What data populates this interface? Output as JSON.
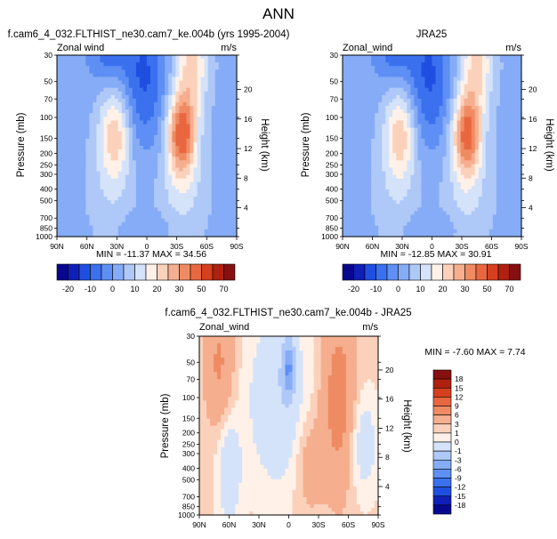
{
  "page": {
    "title": "ANN"
  },
  "chart_data": [
    {
      "id": "p1",
      "type": "heatmap",
      "title": "f.cam6_4_032.FLTHIST_ne30.cam7_ke.004b (yrs 1995-2004)",
      "left_string": "Zonal wind",
      "right_string": "m/s",
      "xlabel": "",
      "ylabel": "Pressure (mb)",
      "y2label": "Height (km)",
      "x_ticks": [
        "90N",
        "60N",
        "30N",
        "0",
        "30S",
        "60S",
        "90S"
      ],
      "y_ticks": [
        "30",
        "50",
        "70",
        "100",
        "150",
        "200",
        "250",
        "300",
        "400",
        "500",
        "700",
        "850",
        "1000"
      ],
      "y2_ticks": [
        "20",
        "16",
        "12",
        "8",
        "4"
      ],
      "min_max": "MIN = -11.37   MAX =  34.56",
      "min": -11.37,
      "max": 34.56,
      "colorbar_labels": [
        "-20",
        "-10",
        "0",
        "10",
        "20",
        "30",
        "50",
        "70"
      ],
      "colorbar_levels": [
        -25,
        -20,
        -15,
        -10,
        -5,
        0,
        5,
        10,
        15,
        20,
        25,
        30,
        40,
        50,
        60,
        70
      ]
    },
    {
      "id": "p2",
      "type": "heatmap",
      "title": "JRA25",
      "left_string": "Zonal_wind",
      "right_string": "m/s",
      "xlabel": "",
      "ylabel": "Pressure (mb)",
      "y2label": "Height (km)",
      "x_ticks": [
        "90N",
        "60N",
        "30N",
        "0",
        "30S",
        "60S",
        "90S"
      ],
      "y_ticks": [
        "30",
        "50",
        "70",
        "100",
        "150",
        "200",
        "250",
        "300",
        "400",
        "500",
        "700",
        "850",
        "1000"
      ],
      "y2_ticks": [
        "20",
        "16",
        "12",
        "8",
        "4"
      ],
      "min_max": "MIN = -12.85   MAX =  30.91",
      "min": -12.85,
      "max": 30.91,
      "colorbar_labels": [
        "-20",
        "-10",
        "0",
        "10",
        "20",
        "30",
        "50",
        "70"
      ],
      "colorbar_levels": [
        -25,
        -20,
        -15,
        -10,
        -5,
        0,
        5,
        10,
        15,
        20,
        25,
        30,
        40,
        50,
        60,
        70
      ]
    },
    {
      "id": "p3",
      "type": "heatmap",
      "title": "f.cam6_4_032.FLTHIST_ne30.cam7_ke.004b - JRA25",
      "left_string": "Zonal_wind",
      "right_string": "m/s",
      "xlabel": "",
      "ylabel": "Pressure (mb)",
      "y2label": "Height (km)",
      "x_ticks": [
        "90N",
        "60N",
        "30N",
        "0",
        "30S",
        "60S",
        "90S"
      ],
      "y_ticks": [
        "30",
        "50",
        "70",
        "100",
        "150",
        "200",
        "250",
        "300",
        "400",
        "500",
        "700",
        "850",
        "1000"
      ],
      "y2_ticks": [
        "20",
        "16",
        "12",
        "8",
        "4"
      ],
      "min_max": "MIN = -7.60   MAX =  7.74",
      "min": -7.6,
      "max": 7.74,
      "colorbar_labels": [
        "18",
        "15",
        "12",
        "9",
        "6",
        "3",
        "1",
        "0",
        "-1",
        "-3",
        "-6",
        "-9",
        "-12",
        "-15",
        "-18"
      ],
      "colorbar_levels": [
        -21,
        -18,
        -15,
        -12,
        -9,
        -6,
        -3,
        -1,
        0,
        1,
        3,
        6,
        9,
        12,
        15,
        18
      ]
    }
  ],
  "colors": {
    "diverging": [
      "#08088f",
      "#0f1fb8",
      "#1f4fe0",
      "#3b70ee",
      "#5e8ff4",
      "#86acf7",
      "#aec8f8",
      "#d4e3f9",
      "#fff1e8",
      "#fbd1bb",
      "#f5ae8e",
      "#ef8b63",
      "#e9673f",
      "#d6401f",
      "#b0200f",
      "#861010"
    ]
  }
}
